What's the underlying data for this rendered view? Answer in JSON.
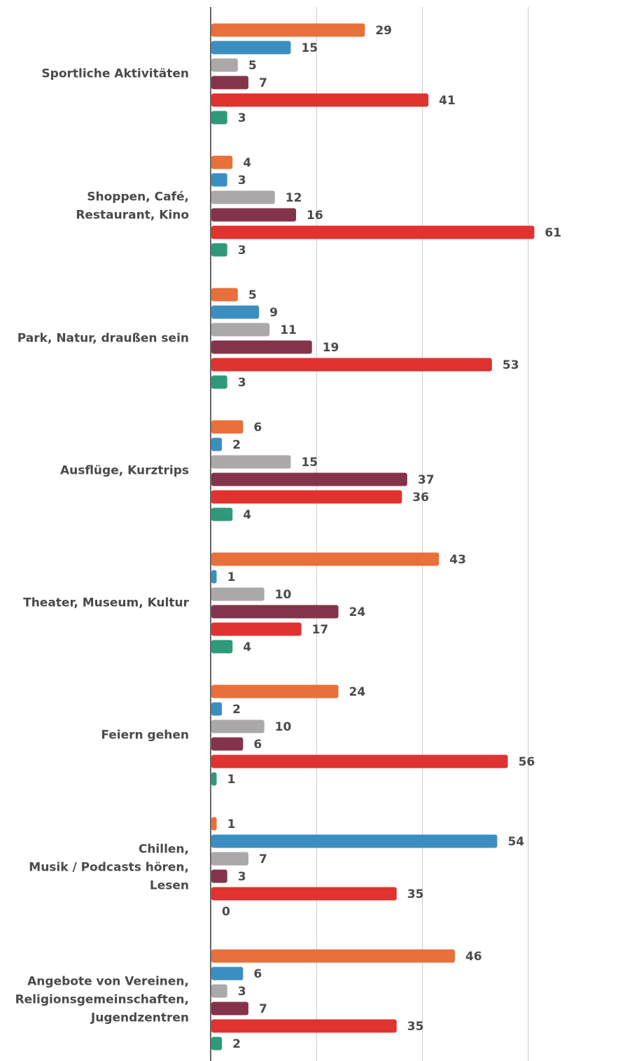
{
  "chart_data": {
    "type": "bar",
    "orientation": "horizontal",
    "categories": [
      "Sportliche Aktivitäten",
      "Shoppen, Café,\nRestaurant, Kino",
      "Park, Natur, draußen sein",
      "Ausflüge, Kurztrips",
      "Theater, Museum, Kultur",
      "Feiern gehen",
      "Chillen,\nMusik / Podcasts hören,\nLesen",
      "Angebote von Vereinen,\nReligionsgemeinschaften,\nJugendzentren"
    ],
    "series": [
      {
        "color": "#e8703a",
        "values": [
          29,
          4,
          5,
          6,
          43,
          24,
          1,
          46
        ]
      },
      {
        "color": "#3a8fc0",
        "values": [
          15,
          3,
          9,
          2,
          1,
          2,
          54,
          6
        ]
      },
      {
        "color": "#aaa8a8",
        "values": [
          5,
          12,
          11,
          15,
          10,
          10,
          7,
          3
        ]
      },
      {
        "color": "#84344a",
        "values": [
          7,
          16,
          19,
          37,
          24,
          6,
          3,
          7
        ]
      },
      {
        "color": "#e0322f",
        "values": [
          41,
          61,
          53,
          36,
          17,
          56,
          35,
          35
        ]
      },
      {
        "color": "#2e9a7a",
        "values": [
          3,
          3,
          3,
          4,
          4,
          1,
          0,
          2
        ]
      }
    ],
    "xlim": [
      0,
      78
    ],
    "xticks": [
      20,
      40,
      60
    ],
    "grid": true
  }
}
